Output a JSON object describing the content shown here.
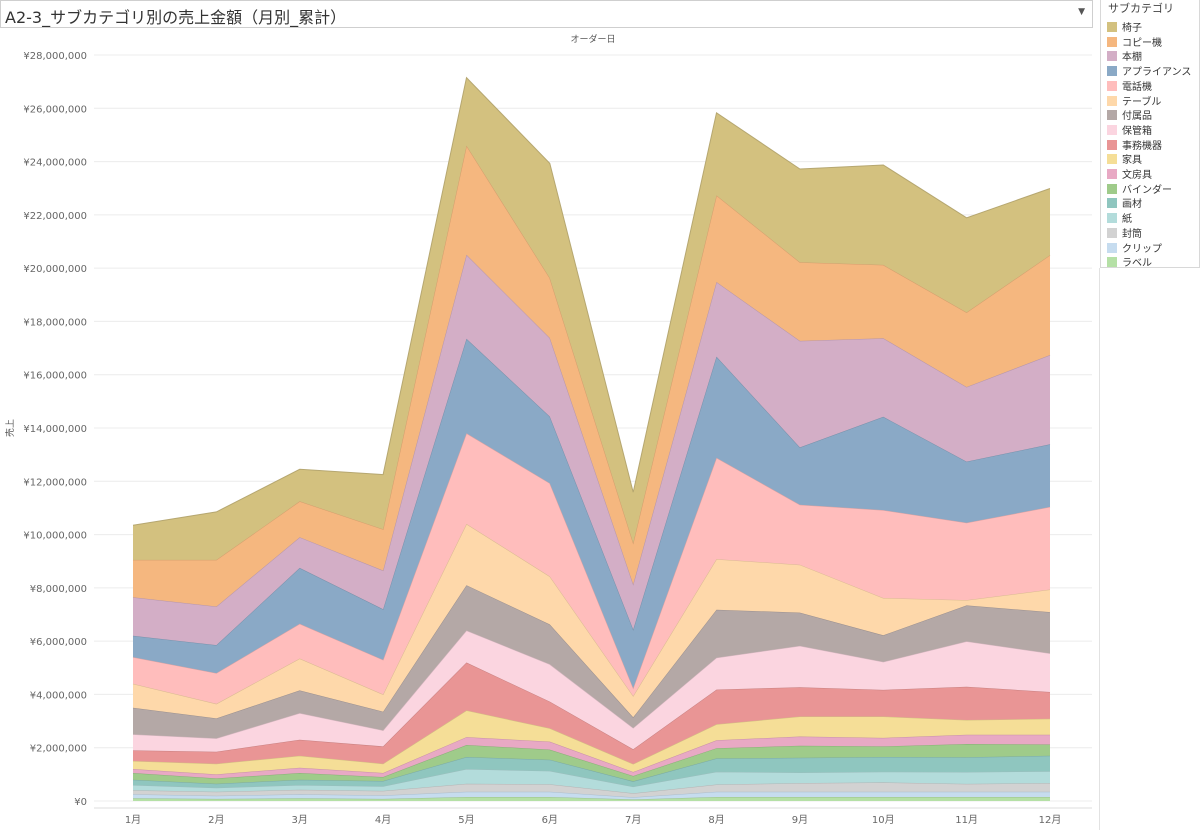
{
  "title": "A2-3_サブカテゴリ別の売上金額（月別_累計）",
  "dropdown_icon": "chevron-down-icon",
  "chart_data": {
    "type": "area",
    "stacked": true,
    "xlabel_top": "オーダー日",
    "ylabel": "売上",
    "categories": [
      "1月",
      "2月",
      "3月",
      "4月",
      "5月",
      "6月",
      "7月",
      "8月",
      "9月",
      "10月",
      "11月",
      "12月"
    ],
    "ylim": [
      0,
      28000000
    ],
    "yticks": [
      0,
      2000000,
      4000000,
      6000000,
      8000000,
      10000000,
      12000000,
      14000000,
      16000000,
      18000000,
      20000000,
      22000000,
      24000000,
      26000000,
      28000000
    ],
    "ytick_labels": [
      "¥0",
      "¥2,000,000",
      "¥4,000,000",
      "¥6,000,000",
      "¥8,000,000",
      "¥10,000,000",
      "¥12,000,000",
      "¥14,000,000",
      "¥16,000,000",
      "¥18,000,000",
      "¥20,000,000",
      "¥22,000,000",
      "¥24,000,000",
      "¥26,000,000",
      "¥28,000,000"
    ],
    "grid": true,
    "legend_title": "サブカテゴリ",
    "legend_position": "right",
    "series": [
      {
        "name": "ラベル",
        "color": "#b5e0a6",
        "values": [
          100000,
          80000,
          100000,
          80000,
          150000,
          150000,
          60000,
          150000,
          150000,
          150000,
          150000,
          150000
        ]
      },
      {
        "name": "クリップ",
        "color": "#c6dcef",
        "values": [
          150000,
          120000,
          150000,
          130000,
          200000,
          200000,
          80000,
          200000,
          200000,
          200000,
          200000,
          200000
        ]
      },
      {
        "name": "封筒",
        "color": "#d2d2d2",
        "values": [
          150000,
          150000,
          170000,
          170000,
          300000,
          280000,
          150000,
          270000,
          320000,
          350000,
          290000,
          320000
        ]
      },
      {
        "name": "紙",
        "color": "#b3dcdb",
        "values": [
          200000,
          150000,
          180000,
          170000,
          550000,
          500000,
          250000,
          480000,
          400000,
          400000,
          450000,
          450000
        ]
      },
      {
        "name": "画材",
        "color": "#8fc6bf",
        "values": [
          200000,
          150000,
          200000,
          200000,
          450000,
          420000,
          200000,
          500000,
          550000,
          550000,
          550000,
          580000
        ]
      },
      {
        "name": "バインダー",
        "color": "#9fcb8a",
        "values": [
          250000,
          200000,
          250000,
          150000,
          450000,
          380000,
          200000,
          380000,
          450000,
          400000,
          500000,
          420000
        ]
      },
      {
        "name": "文房具",
        "color": "#e8a9c4",
        "values": [
          150000,
          150000,
          200000,
          150000,
          300000,
          300000,
          150000,
          300000,
          350000,
          320000,
          350000,
          370000
        ]
      },
      {
        "name": "家具",
        "color": "#f5de97",
        "values": [
          300000,
          400000,
          450000,
          350000,
          1000000,
          500000,
          300000,
          600000,
          750000,
          800000,
          550000,
          600000
        ]
      },
      {
        "name": "事務機器",
        "color": "#e99595",
        "values": [
          400000,
          450000,
          600000,
          650000,
          1800000,
          1000000,
          550000,
          1300000,
          1100000,
          1000000,
          1250000,
          1000000
        ]
      },
      {
        "name": "保管箱",
        "color": "#fbd5e0",
        "values": [
          600000,
          500000,
          1000000,
          600000,
          1200000,
          1400000,
          800000,
          1200000,
          1550000,
          1050000,
          1700000,
          1450000
        ]
      },
      {
        "name": "付属品",
        "color": "#b4a8a6",
        "values": [
          1000000,
          750000,
          850000,
          700000,
          1700000,
          1500000,
          400000,
          1800000,
          1250000,
          1000000,
          1350000,
          1550000
        ]
      },
      {
        "name": "テーブル",
        "color": "#fed8aa",
        "values": [
          900000,
          550000,
          1200000,
          650000,
          2300000,
          1800000,
          800000,
          1900000,
          1800000,
          1400000,
          200000,
          850000
        ]
      },
      {
        "name": "電話機",
        "color": "#ffbdbc",
        "values": [
          1000000,
          1150000,
          1300000,
          1300000,
          3400000,
          3500000,
          300000,
          3800000,
          2250000,
          3300000,
          2900000,
          3100000
        ]
      },
      {
        "name": "アプライアンス",
        "color": "#8aa9c6",
        "values": [
          800000,
          1050000,
          2100000,
          1900000,
          3550000,
          2500000,
          2200000,
          3800000,
          2150000,
          3500000,
          2300000,
          2350000
        ]
      },
      {
        "name": "本棚",
        "color": "#d3aec6",
        "values": [
          1450000,
          1450000,
          1150000,
          1450000,
          3150000,
          2950000,
          1700000,
          2800000,
          4000000,
          2950000,
          2800000,
          3350000
        ]
      },
      {
        "name": "コピー機",
        "color": "#f5b77f",
        "values": [
          1400000,
          1750000,
          1350000,
          1550000,
          4100000,
          2250000,
          1550000,
          3250000,
          2950000,
          2750000,
          2800000,
          3750000
        ]
      },
      {
        "name": "椅子",
        "color": "#d3c17f",
        "values": [
          1300000,
          1800000,
          1200000,
          2050000,
          2550000,
          4300000,
          1900000,
          3100000,
          3500000,
          3750000,
          3550000,
          2500000
        ]
      }
    ]
  }
}
